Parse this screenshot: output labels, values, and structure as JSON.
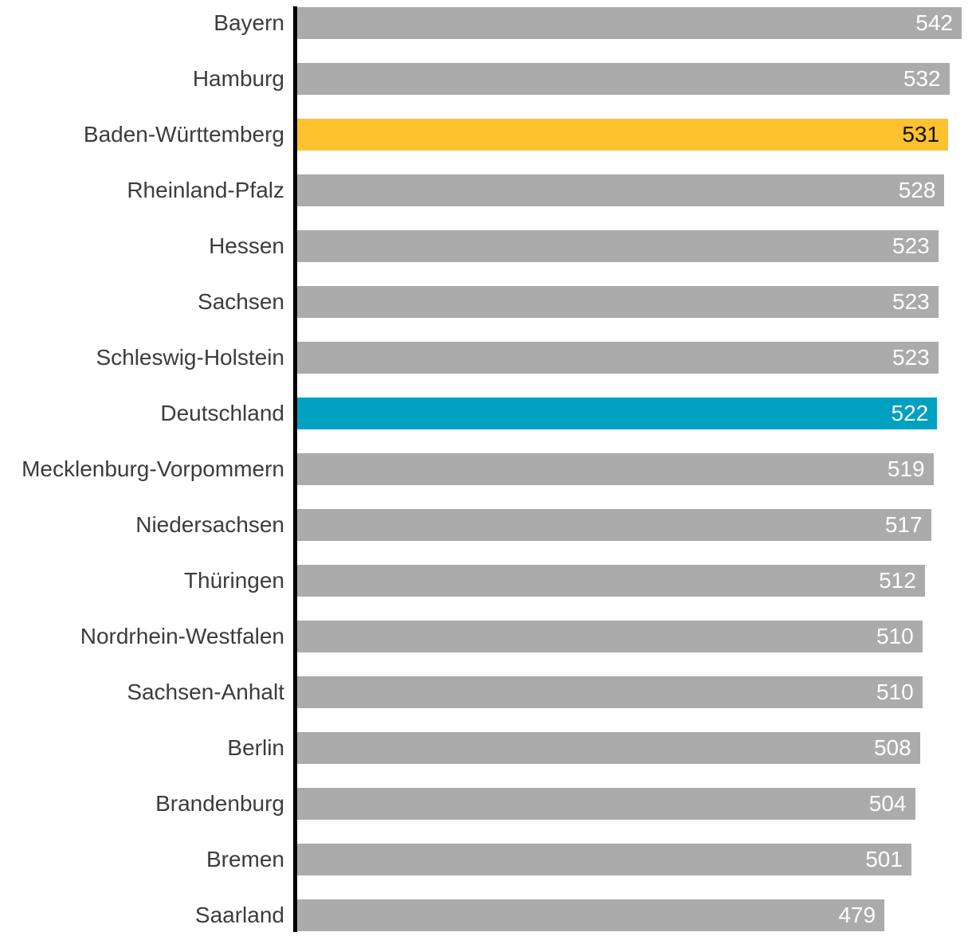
{
  "colors": {
    "background": "#ffffff",
    "bar_default": "#ababab",
    "bar_highlight_yellow": "#ffc12e",
    "bar_highlight_teal": "#00a0c0",
    "value_text_light": "#ffffff",
    "value_text_dark": "#111111",
    "label_text": "#3c3c3c",
    "axis_line": "#000000"
  },
  "chart_data": {
    "type": "bar",
    "orientation": "horizontal",
    "title": "",
    "xlabel": "",
    "ylabel": "",
    "xlim": [
      0,
      542
    ],
    "grid": false,
    "legend": false,
    "value_label_position": "inside-end",
    "categories": [
      "Bayern",
      "Hamburg",
      "Baden-Württemberg",
      "Rheinland-Pfalz",
      "Hessen",
      "Sachsen",
      "Schleswig-Holstein",
      "Deutschland",
      "Mecklenburg-Vorpommern",
      "Niedersachsen",
      "Thüringen",
      "Nordrhein-Westfalen",
      "Sachsen-Anhalt",
      "Berlin",
      "Brandenburg",
      "Bremen",
      "Saarland"
    ],
    "values": [
      542,
      532,
      531,
      528,
      523,
      523,
      523,
      522,
      519,
      517,
      512,
      510,
      510,
      508,
      504,
      501,
      479
    ],
    "highlights": {
      "Baden-Württemberg": "yellow",
      "Deutschland": "teal"
    }
  }
}
